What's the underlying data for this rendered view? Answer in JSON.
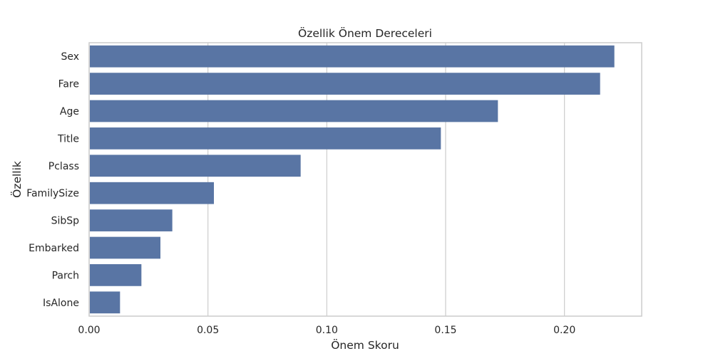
{
  "chart_data": {
    "type": "bar",
    "orientation": "horizontal",
    "title": "Özellik Önem Dereceleri",
    "xlabel": "Önem Skoru",
    "ylabel": "Özellik",
    "categories": [
      "Sex",
      "Fare",
      "Age",
      "Title",
      "Pclass",
      "FamilySize",
      "SibSp",
      "Embarked",
      "Parch",
      "IsAlone"
    ],
    "values": [
      0.221,
      0.215,
      0.172,
      0.148,
      0.089,
      0.0525,
      0.035,
      0.03,
      0.022,
      0.013
    ],
    "xlim": [
      0,
      0.2325
    ],
    "xticks": [
      0.0,
      0.05,
      0.1,
      0.15,
      0.2
    ],
    "xtick_labels": [
      "0.00",
      "0.05",
      "0.10",
      "0.15",
      "0.20"
    ],
    "grid": "vertical",
    "bar_color": "#5975a4",
    "grid_color": "#cccccc",
    "frame_color": "#cccccc",
    "text_color": "#262626"
  }
}
